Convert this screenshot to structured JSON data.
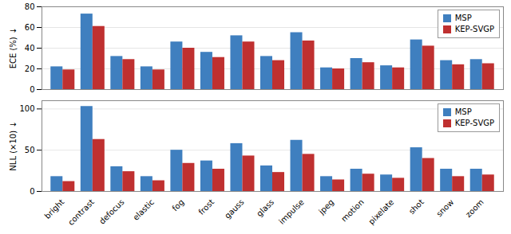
{
  "chart_data": [
    {
      "type": "bar",
      "categories": [
        "bright",
        "contrast",
        "defocus",
        "elastic",
        "fog",
        "frost",
        "gauss",
        "glass",
        "impulse",
        "jpeg",
        "motion",
        "pixelate",
        "shot",
        "snow",
        "zoom"
      ],
      "series": [
        {
          "name": "MSP",
          "color": "#3F7FBF",
          "values": [
            22,
            73,
            32,
            22,
            46,
            36,
            52,
            32,
            55,
            21,
            30,
            23,
            48,
            28,
            29
          ]
        },
        {
          "name": "KEP-SVGP",
          "color": "#BF3030",
          "values": [
            19,
            61,
            29,
            19,
            40,
            31,
            46,
            28,
            47,
            20,
            26,
            21,
            42,
            24,
            25
          ]
        }
      ],
      "ylabel": "ECE (%) ↓",
      "ylim": [
        0,
        80
      ],
      "yticks": [
        0,
        20,
        40,
        60,
        80
      ],
      "grid": true,
      "legend": "upper right",
      "tick_labels": "y"
    },
    {
      "type": "bar",
      "categories": [
        "bright",
        "contrast",
        "defocus",
        "elastic",
        "fog",
        "frost",
        "gauss",
        "glass",
        "impulse",
        "jpeg",
        "motion",
        "pixelate",
        "shot",
        "snow",
        "zoom"
      ],
      "series": [
        {
          "name": "MSP",
          "color": "#3F7FBF",
          "values": [
            18,
            103,
            30,
            18,
            50,
            37,
            58,
            31,
            62,
            18,
            27,
            20,
            53,
            27,
            27
          ]
        },
        {
          "name": "KEP-SVGP",
          "color": "#BF3030",
          "values": [
            12,
            63,
            24,
            13,
            34,
            27,
            43,
            23,
            45,
            14,
            21,
            16,
            40,
            18,
            20
          ]
        }
      ],
      "ylabel": "NLL (×10) ↓",
      "ylim": [
        0,
        110
      ],
      "yticks": [
        0,
        50,
        100
      ],
      "grid": true,
      "legend": "upper right"
    }
  ]
}
